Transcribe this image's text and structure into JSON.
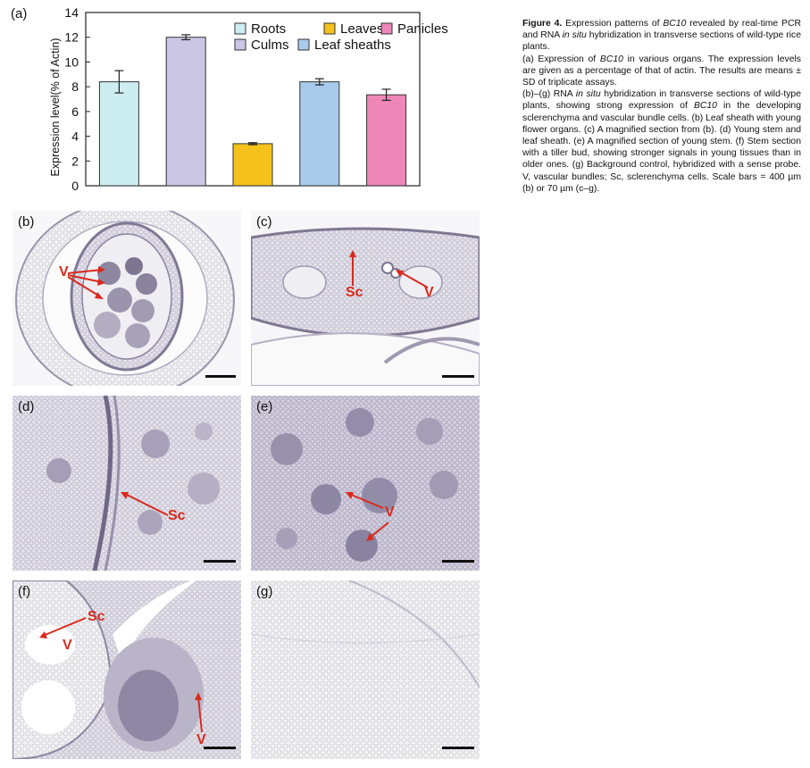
{
  "figure": {
    "caption": {
      "title": "Figure 4.",
      "p1": [
        "Expression patterns of ",
        "BC10",
        " revealed by real-time PCR and RNA ",
        "in situ",
        " hybridization in transverse sections of wild-type rice plants."
      ],
      "p2": [
        "(a) Expression of ",
        "BC10",
        " in various organs. The expression levels are given as a percentage of that of actin. The results are means ± SD of triplicate assays."
      ],
      "p3": [
        "(b)–(g) RNA ",
        "in situ",
        " hybridization in transverse sections of wild-type plants, showing strong expression of ",
        "BC10",
        " in the developing sclerenchyma and vascular bundle cells. (b) Leaf sheath with young flower organs. (c) A magnified section from (b). (d) Young stem and leaf sheath. (e) A magnified section of young stem. (f) Stem section with a tiller bud, showing stronger signals in young tissues than in older ones. (g) Background control, hybridized with a sense probe. V, vascular bundles; Sc, sclerenchyma cells. Scale bars = 400 µm (b) or 70 µm (c–g)."
      ]
    },
    "panels": [
      {
        "label": "(b)",
        "annotations": [
          "V"
        ]
      },
      {
        "label": "(c)",
        "annotations": [
          "Sc",
          "V"
        ]
      },
      {
        "label": "(d)",
        "annotations": [
          "Sc"
        ]
      },
      {
        "label": "(e)",
        "annotations": [
          "V"
        ]
      },
      {
        "label": "(f)",
        "annotations": [
          "Sc",
          "V",
          "V"
        ]
      },
      {
        "label": "(g)",
        "annotations": []
      }
    ]
  },
  "chart_data": {
    "type": "bar",
    "panel_label": "(a)",
    "categories": [
      "Roots",
      "Culms",
      "Leaves",
      "Leaf sheaths",
      "Panicles"
    ],
    "values": [
      8.4,
      12.0,
      3.4,
      8.4,
      7.35
    ],
    "errors": [
      0.9,
      0.2,
      0.08,
      0.25,
      0.45
    ],
    "colors": [
      "#cdeef0",
      "#cbc6e4",
      "#f5c21b",
      "#a8cbec",
      "#ee86b8"
    ],
    "ylabel": "Expression level(% of Actin)",
    "xlabel": "",
    "ylim": [
      0,
      14
    ],
    "yticks": [
      "0",
      "2",
      "4",
      "6",
      "8",
      "10",
      "12",
      "14"
    ],
    "legend": {
      "placement": "top-right",
      "entries": [
        "Roots",
        "Leaves",
        "Panicles",
        "Culms",
        "Leaf sheaths"
      ]
    },
    "grid": false
  }
}
